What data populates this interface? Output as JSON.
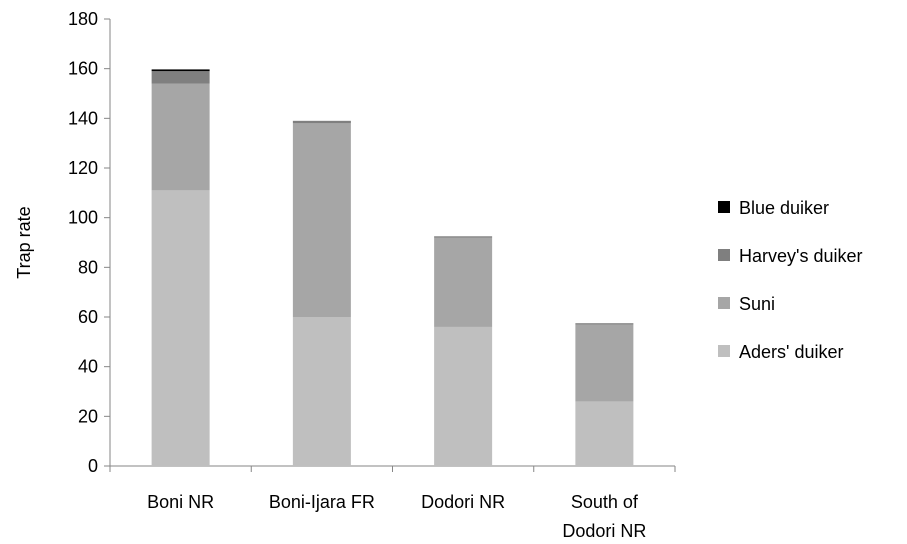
{
  "chart_data": {
    "type": "bar",
    "stacked": true,
    "title": "",
    "xlabel": "",
    "ylabel": "Trap rate",
    "ylim": [
      0,
      180
    ],
    "yticks": [
      0,
      20,
      40,
      60,
      80,
      100,
      120,
      140,
      160,
      180
    ],
    "grid": false,
    "legend_position": "right",
    "categories": [
      [
        "Boni NR"
      ],
      [
        "Boni-Ijara FR"
      ],
      [
        "Dodori NR"
      ],
      [
        "South of",
        "Dodori NR"
      ]
    ],
    "series": [
      {
        "name": "Aders' duiker",
        "color": "#bfbfbf",
        "values": [
          111,
          60,
          56,
          26
        ]
      },
      {
        "name": "Suni",
        "color": "#a6a6a6",
        "values": [
          43,
          78,
          36,
          31
        ]
      },
      {
        "name": "Harvey's duiker",
        "color": "#7f7f7f",
        "values": [
          5,
          1,
          0.5,
          0.5
        ]
      },
      {
        "name": "Blue duiker",
        "color": "#000000",
        "values": [
          0.7,
          0,
          0,
          0
        ]
      }
    ]
  }
}
